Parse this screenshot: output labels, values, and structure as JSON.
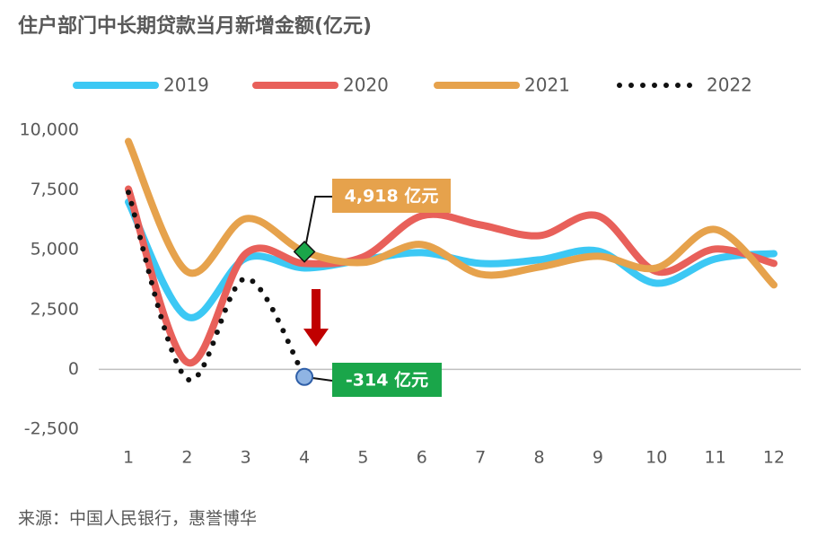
{
  "chart_data": {
    "type": "line",
    "title": "住户部门中长期贷款当月新增金额(亿元)",
    "source": "来源：中国人民银行，惠誉博华",
    "categories": [
      "1",
      "2",
      "3",
      "4",
      "5",
      "6",
      "7",
      "8",
      "9",
      "10",
      "11",
      "12"
    ],
    "ylim": [
      -2500,
      10000
    ],
    "yticks": [
      {
        "value": 10000,
        "label": "10,000"
      },
      {
        "value": 7500,
        "label": "7,500"
      },
      {
        "value": 5000,
        "label": "5,000"
      },
      {
        "value": 2500,
        "label": "2,500"
      },
      0,
      {
        "value": -2500,
        "label": "-2,500"
      }
    ],
    "series": [
      {
        "name": "2019",
        "color": "#3cc8f4",
        "values": [
          7000,
          2200,
          4650,
          4240,
          4580,
          4880,
          4430,
          4580,
          4950,
          3600,
          4620,
          4840
        ]
      },
      {
        "name": "2020",
        "color": "#e8605a",
        "values": [
          7540,
          300,
          4840,
          4430,
          4700,
          6420,
          6040,
          5590,
          6420,
          4090,
          5030,
          4430
        ]
      },
      {
        "name": "2021",
        "color": "#e6a24c",
        "values": [
          9530,
          4090,
          6300,
          4918,
          4470,
          5220,
          3980,
          4280,
          4730,
          4240,
          5850,
          3530
        ]
      },
      {
        "name": "2022",
        "color": "#111111",
        "values": [
          7400,
          -400,
          3800,
          -314,
          null,
          null,
          null,
          null,
          null,
          null,
          null,
          null
        ]
      }
    ],
    "annotations": [
      {
        "text": "4,918 亿元",
        "series": 2,
        "index": 3,
        "color": "#e6a24c"
      },
      {
        "text": "-314 亿元",
        "series": 3,
        "index": 3,
        "color": "#1aa64a"
      }
    ]
  }
}
